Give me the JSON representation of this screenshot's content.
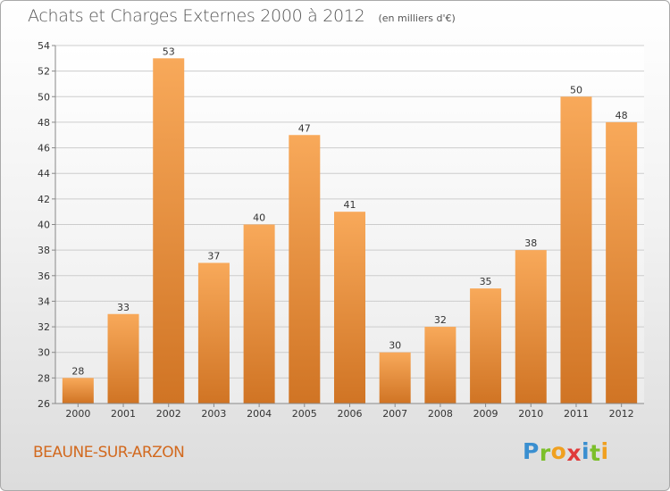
{
  "page": {
    "city": "BEAUNE-SUR-ARZON",
    "logo": "Proxiti"
  },
  "chart_data": {
    "type": "bar",
    "title": "Achats et Charges Externes 2000 à 2012",
    "subtitle": "(en milliers d'€)",
    "xlabel": "",
    "ylabel": "",
    "categories": [
      "2000",
      "2001",
      "2002",
      "2003",
      "2004",
      "2005",
      "2006",
      "2007",
      "2008",
      "2009",
      "2010",
      "2011",
      "2012"
    ],
    "values": [
      28,
      33,
      53,
      37,
      40,
      47,
      41,
      30,
      32,
      35,
      38,
      50,
      48
    ],
    "ylim": [
      26,
      54
    ],
    "yticks": [
      26,
      28,
      30,
      32,
      34,
      36,
      38,
      40,
      42,
      44,
      46,
      48,
      50,
      52,
      54
    ],
    "grid": true,
    "colors": {
      "bar_light": "#f8a95a",
      "bar_dark": "#d07424",
      "grid": "#cccccc",
      "axis": "#888888",
      "logo_letters": [
        "#3a8fd0",
        "#7cbf2a",
        "#f0a020",
        "#e03a3a",
        "#3a8fd0",
        "#7cbf2a",
        "#f0a020"
      ]
    }
  }
}
